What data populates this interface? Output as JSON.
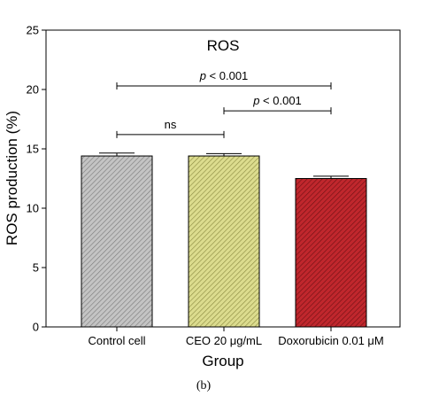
{
  "chart_data": {
    "type": "bar",
    "title": "ROS",
    "xlabel": "Group",
    "ylabel": "ROS production (%)",
    "ylim": [
      0,
      25
    ],
    "yticks": [
      0,
      5,
      10,
      15,
      20,
      25
    ],
    "categories": [
      "Control cell",
      "CEO 20 μg/mL",
      "Doxorubicin 0.01 μM"
    ],
    "values": [
      14.4,
      14.4,
      12.5
    ],
    "errors": [
      0.25,
      0.2,
      0.2
    ],
    "colors": [
      "#c4c4c4",
      "#d9d98a",
      "#c0272d"
    ],
    "hatch": "diagonal",
    "grid": false,
    "comparisons": [
      {
        "from": 0,
        "to": 1,
        "y": 16.2,
        "label": "ns"
      },
      {
        "from": 1,
        "to": 2,
        "y": 18.2,
        "label": "p < 0.001"
      },
      {
        "from": 0,
        "to": 2,
        "y": 20.3,
        "label": "p < 0.001"
      }
    ]
  },
  "caption": "(b)"
}
